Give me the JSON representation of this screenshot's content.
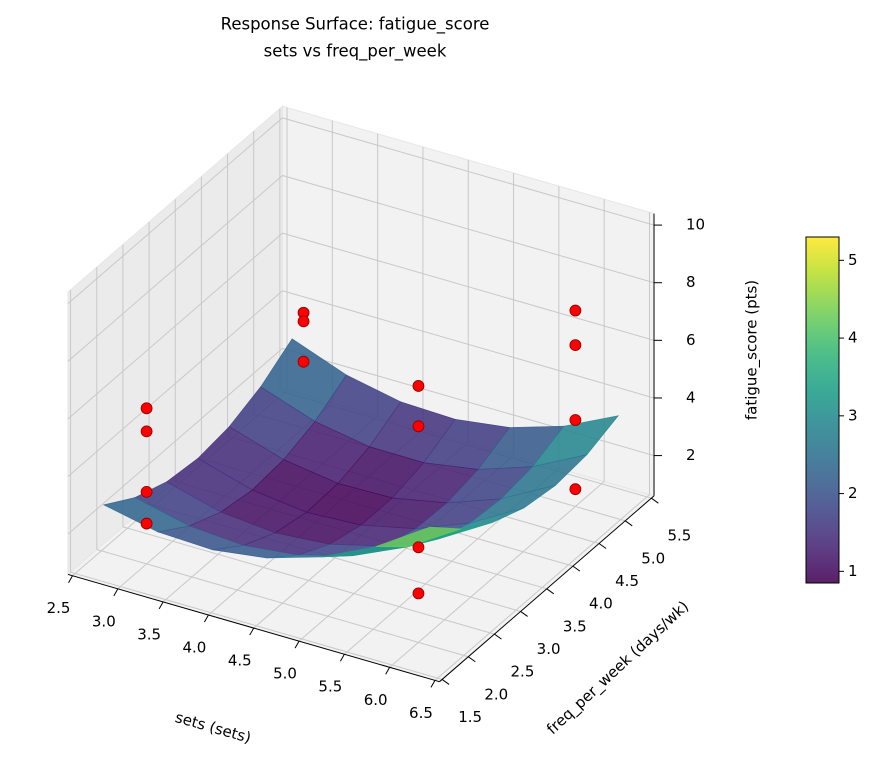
{
  "chart_data": {
    "type": "surface3d",
    "title": "Response Surface: fatigue_score",
    "subtitle": "sets vs freq_per_week",
    "x_label": "sets (sets)",
    "y_label": "freq_per_week (days/wk)",
    "z_label": "fatigue_score (pts)",
    "xlim": [
      2.45,
      6.55
    ],
    "ylim": [
      1.45,
      5.55
    ],
    "zlim": [
      0.6,
      10.4
    ],
    "xticks": [
      2.5,
      {
        "value": 3,
        "label": "3.0"
      },
      3.5,
      {
        "value": 4,
        "label": "4.0"
      },
      4.5,
      {
        "value": 5,
        "label": "5.0"
      },
      5.5,
      {
        "value": 6,
        "label": "6.0"
      },
      6.5
    ],
    "yticks": [
      1.5,
      {
        "value": 2,
        "label": "2.0"
      },
      2.5,
      {
        "value": 3,
        "label": "3.0"
      },
      3.5,
      {
        "value": 4,
        "label": "4.0"
      },
      4.5,
      {
        "value": 5,
        "label": "5.0"
      },
      5.5
    ],
    "zticks": [
      2,
      4,
      6,
      8,
      10
    ],
    "grid": true,
    "surface": {
      "x": [
        2.7,
        3.3,
        3.9,
        4.5,
        5.1,
        5.7,
        6.3
      ],
      "y": [
        1.7,
        2.3,
        2.9,
        3.5,
        4.1,
        4.7,
        5.3
      ],
      "z": [
        [
          2.85,
          2.45,
          2.38,
          2.64,
          3.22,
          4.12,
          5.35
        ],
        [
          2.16,
          1.72,
          1.59,
          1.8,
          2.32,
          3.17,
          4.34
        ],
        [
          1.76,
          1.26,
          1.08,
          1.23,
          1.71,
          2.5,
          3.62
        ],
        [
          1.63,
          1.08,
          0.85,
          0.95,
          1.37,
          2.11,
          3.18
        ],
        [
          1.79,
          1.19,
          0.91,
          0.95,
          1.32,
          2.01,
          3.02
        ],
        [
          2.23,
          1.57,
          1.24,
          1.23,
          1.54,
          2.18,
          3.14
        ],
        [
          2.95,
          2.24,
          1.85,
          1.79,
          2.05,
          2.64,
          3.55
        ]
      ],
      "colormap": "viridis"
    },
    "points": {
      "color": "#ff0000",
      "x": [
        3,
        3,
        3,
        3,
        3,
        3,
        3,
        6,
        6,
        6,
        6,
        6,
        6,
        6,
        6
      ],
      "y": [
        2,
        2,
        2,
        2,
        5,
        5,
        5,
        2,
        2,
        2,
        2,
        5,
        5,
        5,
        5
      ],
      "z": [
        6.0,
        5.2,
        3.1,
        2.0,
        4.6,
        4.3,
        2.9,
        9.5,
        8.1,
        3.9,
        2.3,
        7.4,
        6.2,
        3.6,
        1.2
      ]
    },
    "colorbar": {
      "lim": [
        0.85,
        5.3
      ],
      "ticks": [
        1,
        2,
        3,
        4,
        5
      ]
    }
  }
}
